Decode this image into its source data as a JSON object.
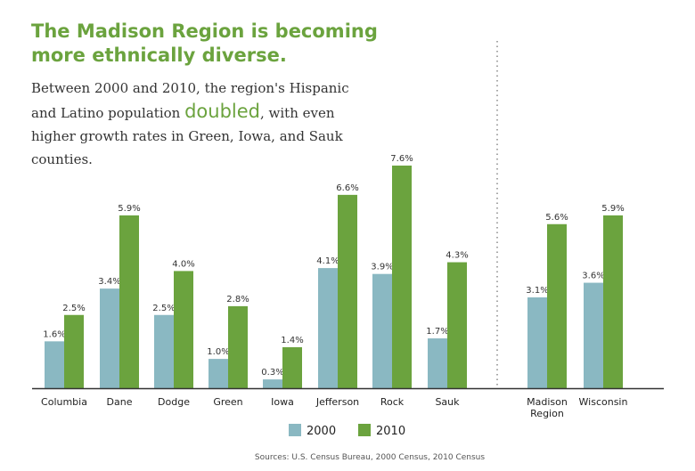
{
  "title_line1": "The Madison Region is becoming",
  "title_line2": "more ethnically diverse.",
  "subtitle": {
    "before": "Between 2000 and 2010, the region's Hispanic and Latino population ",
    "highlight": "doubled",
    "after": ", with even higher growth rates in Green, Iowa, and Sauk counties."
  },
  "source": "Sources: U.S. Census Bureau, 2000 Census, 2010 Census",
  "colors": {
    "2000": "#8ab8c2",
    "2010": "#6ba33e",
    "title": "#6ba33e"
  },
  "chart_data": {
    "type": "bar",
    "categories": [
      "Columbia",
      "Dane",
      "Dodge",
      "Green",
      "Iowa",
      "Jefferson",
      "Rock",
      "Sauk",
      "Madison Region",
      "Wisconsin"
    ],
    "series": [
      {
        "name": "2000",
        "values": [
          1.6,
          3.4,
          2.5,
          1.0,
          0.3,
          4.1,
          3.9,
          1.7,
          3.1,
          3.6
        ],
        "labels": [
          "1.6%",
          "3.4%",
          "2.5%",
          "1.0%",
          "0.3%",
          "4.1%",
          "3.9%",
          "1.7%",
          "3.1%",
          "3.6%"
        ]
      },
      {
        "name": "2010",
        "values": [
          2.5,
          5.9,
          4.0,
          2.8,
          1.4,
          6.6,
          7.6,
          4.3,
          5.6,
          5.9
        ],
        "labels": [
          "2.5%",
          "5.9%",
          "4.0%",
          "2.8%",
          "1.4%",
          "6.6%",
          "7.6%",
          "4.3%",
          "5.6%",
          "5.9%"
        ]
      }
    ],
    "ylim": [
      0,
      8
    ],
    "legend": "bottom-center",
    "grid": false
  }
}
